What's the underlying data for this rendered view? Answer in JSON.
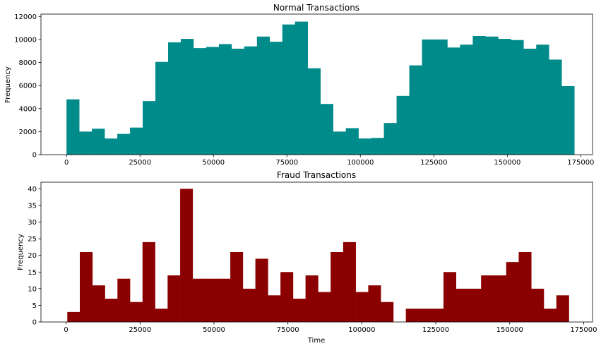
{
  "chart_data": [
    {
      "type": "bar",
      "title": "Normal Transactions",
      "xlabel": "",
      "ylabel": "Frequency",
      "color": "#008b8b",
      "xlim": [
        -8700,
        179000
      ],
      "ylim": [
        0,
        12200
      ],
      "xticks": [
        0,
        25000,
        50000,
        75000,
        100000,
        125000,
        150000,
        175000
      ],
      "yticks": [
        0,
        2000,
        4000,
        6000,
        8000,
        10000,
        12000
      ],
      "bin_start": 0,
      "bin_width": 4320,
      "values": [
        4800,
        2000,
        2250,
        1400,
        1800,
        2350,
        4650,
        8050,
        9750,
        10050,
        9250,
        9350,
        9600,
        9200,
        9400,
        10250,
        9800,
        11300,
        11550,
        7500,
        4400,
        2000,
        2300,
        1400,
        1450,
        2750,
        5100,
        7750,
        10000,
        10000,
        9300,
        9550,
        10300,
        10250,
        10050,
        9950,
        9200,
        9550,
        8250,
        5950
      ]
    },
    {
      "type": "bar",
      "title": "Fraud Transactions",
      "xlabel": "Time",
      "ylabel": "Frequency",
      "color": "#8b0000",
      "xlim": [
        -8500,
        178000
      ],
      "ylim": [
        0,
        42
      ],
      "xticks": [
        0,
        25000,
        50000,
        75000,
        100000,
        125000,
        150000,
        175000
      ],
      "yticks": [
        0,
        5,
        10,
        15,
        20,
        25,
        30,
        35,
        40
      ],
      "bin_start": 400,
      "bin_width": 4240,
      "values": [
        3,
        21,
        11,
        7,
        13,
        6,
        24,
        4,
        14,
        40,
        13,
        13,
        13,
        21,
        10,
        19,
        8,
        15,
        7,
        14,
        9,
        21,
        24,
        9,
        11,
        6,
        0,
        4,
        4,
        4,
        15,
        10,
        10,
        14,
        14,
        18,
        21,
        10,
        4,
        8
      ]
    }
  ]
}
